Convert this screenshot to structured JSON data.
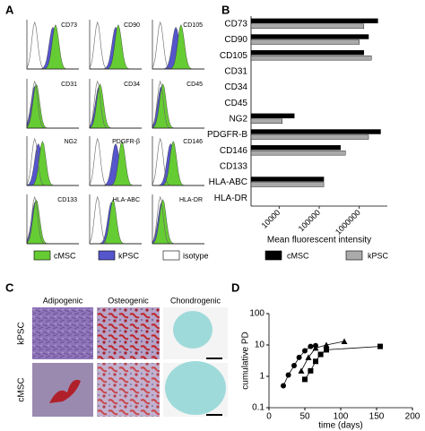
{
  "panel_labels": [
    "A",
    "B",
    "C",
    "D"
  ],
  "flow_cytometry": {
    "markers": [
      "CD73",
      "CD90",
      "CD105",
      "CD31",
      "CD34",
      "CD45",
      "NG2",
      "PDGFR-β",
      "CD146",
      "CD133",
      "HLA-ABC",
      "HLA-DR"
    ],
    "legend": [
      {
        "name": "cMSC",
        "color": "#66cc33"
      },
      {
        "name": "kPSC",
        "color": "#5555cc"
      },
      {
        "name": "isotype",
        "color": "#ffffff"
      }
    ]
  },
  "staining": {
    "columns": [
      "Adipogenic",
      "Osteogenic",
      "Chondrogenic"
    ],
    "rows": [
      "kPSC",
      "cMSC"
    ]
  },
  "chart_data": [
    {
      "type": "hbar",
      "x_label": "Mean fluorescent intensity",
      "categories": [
        "CD73",
        "CD90",
        "CD105",
        "CD31",
        "CD34",
        "CD45",
        "NG2",
        "PDGFR-B",
        "CD146",
        "CD133",
        "HLA-ABC",
        "HLA-DR"
      ],
      "series": [
        {
          "name": "cMSC",
          "color": "#000000",
          "values": [
            2900000,
            1700000,
            1300000,
            null,
            null,
            null,
            24000,
            3400000,
            340000,
            null,
            130000,
            null
          ]
        },
        {
          "name": "kPSC",
          "color": "#aaaaaa",
          "values": [
            1300000,
            1000000,
            2000000,
            null,
            null,
            null,
            12000,
            1700000,
            450000,
            null,
            130000,
            null
          ]
        }
      ],
      "log_x": true,
      "xlim": [
        2000,
        5000000
      ],
      "xticks": [
        10000,
        100000,
        1000000
      ]
    },
    {
      "type": "scatter-line",
      "x_label": "time (days)",
      "y_label": "cumulative PD",
      "series": [
        {
          "marker": "circle",
          "color": "#000000",
          "x": [
            20,
            27,
            35,
            42,
            50,
            58,
            65
          ],
          "values": [
            0.5,
            1.1,
            2.2,
            4,
            6.5,
            9,
            9.5
          ]
        },
        {
          "marker": "triangle",
          "color": "#000000",
          "x": [
            45,
            55,
            65,
            80,
            105
          ],
          "values": [
            1.5,
            4,
            8,
            10,
            13
          ]
        },
        {
          "marker": "square",
          "color": "#000000",
          "x": [
            50,
            58,
            65,
            72,
            80,
            155
          ],
          "values": [
            0.8,
            1.5,
            3,
            5,
            7,
            9
          ]
        }
      ],
      "log_y": true,
      "xlim": [
        0,
        200
      ],
      "xticks": [
        0,
        50,
        100,
        150,
        200
      ],
      "ylim": [
        0.1,
        100
      ],
      "yticks": [
        0.1,
        1,
        10,
        100
      ]
    }
  ]
}
